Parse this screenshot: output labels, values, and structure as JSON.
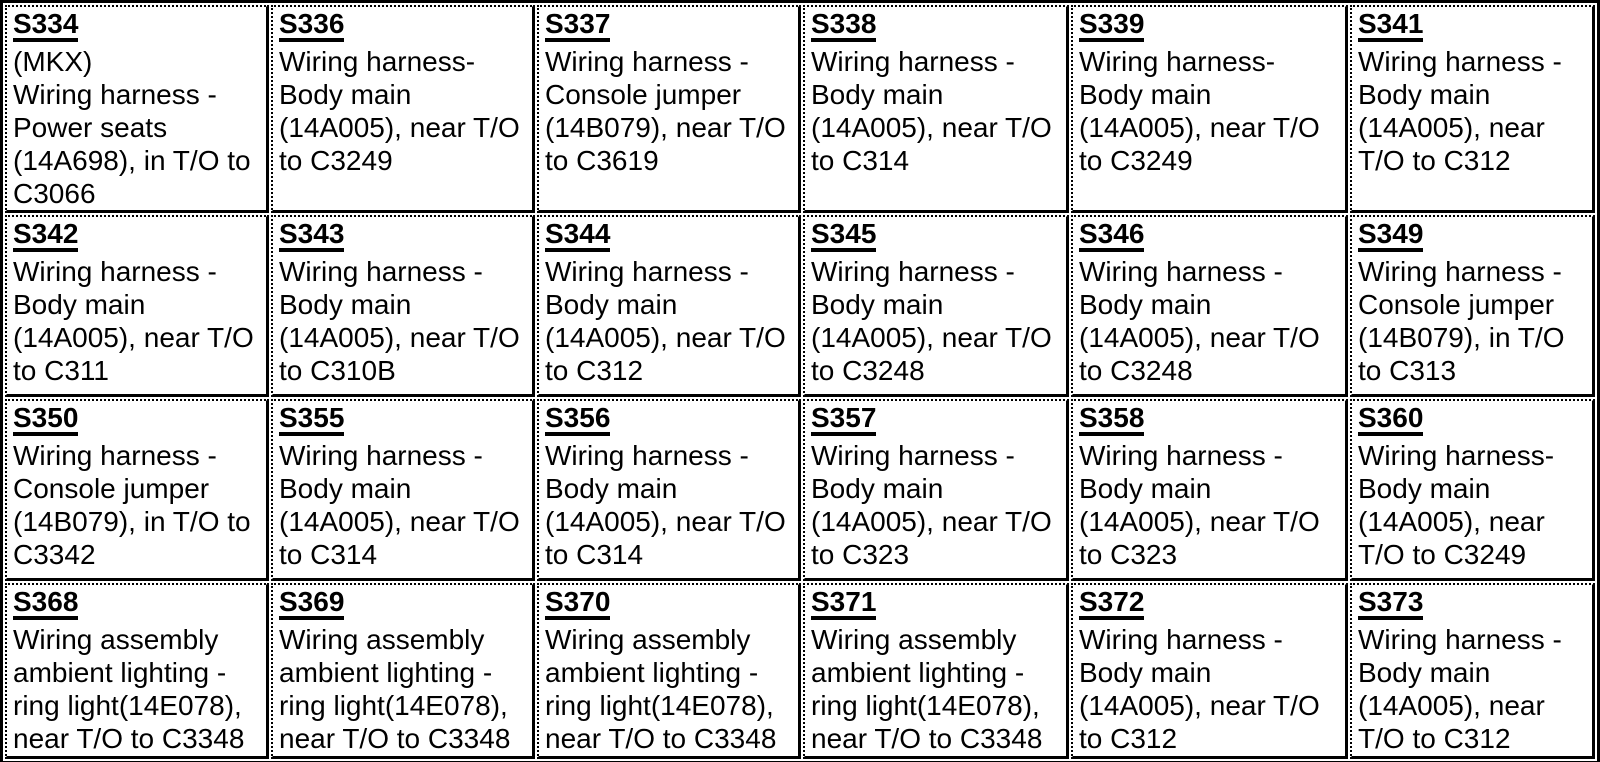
{
  "page": {
    "background_color": "#ffffff",
    "text_color": "#000000",
    "border_color": "#000000"
  },
  "table": {
    "rows": [
      {
        "cells": [
          {
            "code": "S334",
            "lines": [
              "(MKX)",
              "Wiring harness -",
              "Power seats",
              "(14A698), in T/O to",
              "C3066"
            ]
          },
          {
            "code": "S336",
            "lines": [
              "Wiring harness-",
              "Body main",
              "(14A005), near T/O",
              "to C3249"
            ]
          },
          {
            "code": "S337",
            "lines": [
              "Wiring harness -",
              "Console jumper",
              "(14B079), near T/O",
              "to C3619"
            ]
          },
          {
            "code": "S338",
            "lines": [
              "Wiring harness -",
              "Body main",
              "(14A005), near T/O",
              "to C314"
            ]
          },
          {
            "code": "S339",
            "lines": [
              "Wiring harness-",
              "Body main",
              "(14A005), near T/O",
              "to C3249"
            ]
          },
          {
            "code": "S341",
            "lines": [
              "Wiring harness -",
              "Body main",
              "(14A005), near",
              "T/O to C312"
            ]
          }
        ]
      },
      {
        "cells": [
          {
            "code": "S342",
            "lines": [
              "Wiring harness -",
              "Body main",
              "(14A005), near T/O",
              "to C311"
            ]
          },
          {
            "code": "S343",
            "lines": [
              "Wiring harness -",
              "Body main",
              "(14A005), near T/O",
              "to C310B"
            ]
          },
          {
            "code": "S344",
            "lines": [
              "Wiring harness -",
              "Body main",
              "(14A005), near T/O",
              "to C312"
            ]
          },
          {
            "code": "S345",
            "lines": [
              "Wiring harness -",
              "Body main",
              "(14A005), near T/O",
              "to C3248"
            ]
          },
          {
            "code": "S346",
            "lines": [
              "Wiring harness -",
              "Body main",
              "(14A005), near T/O",
              "to C3248"
            ]
          },
          {
            "code": "S349",
            "lines": [
              "Wiring harness -",
              "Console jumper",
              "(14B079), in T/O",
              "to C313"
            ]
          }
        ]
      },
      {
        "cells": [
          {
            "code": "S350",
            "lines": [
              "Wiring harness -",
              "Console jumper",
              "(14B079), in T/O to",
              "C3342"
            ]
          },
          {
            "code": "S355",
            "lines": [
              "Wiring harness -",
              "Body main",
              "(14A005), near T/O",
              "to C314"
            ]
          },
          {
            "code": "S356",
            "lines": [
              "Wiring harness -",
              "Body main",
              "(14A005), near T/O",
              "to C314"
            ]
          },
          {
            "code": "S357",
            "lines": [
              "Wiring harness -",
              "Body main",
              "(14A005), near T/O",
              "to C323"
            ]
          },
          {
            "code": "S358",
            "lines": [
              "Wiring harness -",
              "Body main",
              "(14A005), near T/O",
              "to C323"
            ]
          },
          {
            "code": "S360",
            "lines": [
              "Wiring harness-",
              "Body main",
              "(14A005), near",
              "T/O to C3249"
            ]
          }
        ]
      },
      {
        "cells": [
          {
            "code": "S368",
            "lines": [
              "Wiring assembly",
              "ambient lighting -",
              "ring light(14E078),",
              "near T/O to C3348"
            ]
          },
          {
            "code": "S369",
            "lines": [
              "Wiring assembly",
              "ambient lighting -",
              "ring light(14E078),",
              "near T/O to C3348"
            ]
          },
          {
            "code": "S370",
            "lines": [
              "Wiring assembly",
              "ambient lighting -",
              "ring light(14E078),",
              "near T/O to C3348"
            ]
          },
          {
            "code": "S371",
            "lines": [
              "Wiring assembly",
              "ambient lighting -",
              "ring light(14E078),",
              "near T/O to C3348"
            ]
          },
          {
            "code": "S372",
            "lines": [
              "Wiring harness -",
              "Body main",
              "(14A005), near T/O",
              "to C312"
            ]
          },
          {
            "code": "S373",
            "lines": [
              "Wiring harness -",
              "Body main",
              "(14A005), near",
              "T/O to C312"
            ]
          }
        ]
      }
    ]
  }
}
